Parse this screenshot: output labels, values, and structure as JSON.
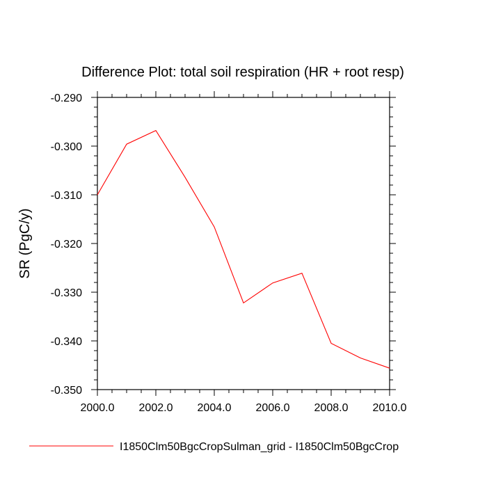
{
  "chart_data": {
    "type": "line",
    "title": "Difference Plot: total soil respiration (HR + root resp)",
    "xlabel": "",
    "ylabel": "SR  (PgC/y)",
    "xlim": [
      2000,
      2010
    ],
    "ylim": [
      -0.35,
      -0.29
    ],
    "x_ticks": [
      2000,
      2002,
      2004,
      2006,
      2008,
      2010
    ],
    "x_tick_labels": [
      "2000.0",
      "2002.0",
      "2004.0",
      "2006.0",
      "2008.0",
      "2010.0"
    ],
    "y_ticks": [
      -0.29,
      -0.3,
      -0.31,
      -0.32,
      -0.33,
      -0.34,
      -0.35
    ],
    "y_tick_labels": [
      "-0.290",
      "-0.300",
      "-0.310",
      "-0.320",
      "-0.330",
      "-0.340",
      "-0.350"
    ],
    "grid": false,
    "legend_position": "bottom",
    "series": [
      {
        "name": "I1850Clm50BgcCropSulman_grid - I1850Clm50BgcCrop",
        "color": "#ff0000",
        "x": [
          2000,
          2001,
          2002,
          2003,
          2004,
          2005,
          2006,
          2007,
          2008,
          2009,
          2010
        ],
        "y": [
          -0.31,
          -0.2996,
          -0.2968,
          -0.3064,
          -0.3166,
          -0.3322,
          -0.3281,
          -0.3261,
          -0.3405,
          -0.3435,
          -0.3456
        ]
      }
    ]
  }
}
